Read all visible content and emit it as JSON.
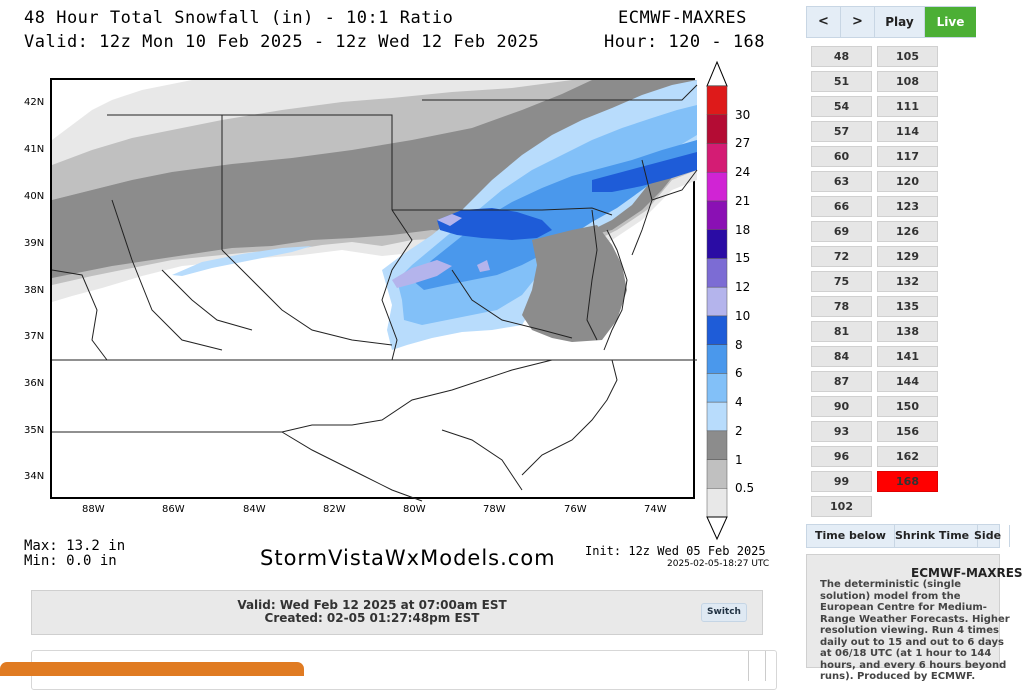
{
  "header": {
    "title_line1": "48 Hour Total Snowfall (in) - 10:1 Ratio",
    "title_line2": "Valid: 12z Mon 10 Feb 2025 - 12z Wed 12 Feb 2025",
    "model": "ECMWF-MAXRES",
    "hour_range": "Hour: 120 - 168"
  },
  "map": {
    "lat_labels": [
      "42N",
      "41N",
      "40N",
      "39N",
      "38N",
      "37N",
      "36N",
      "35N",
      "34N"
    ],
    "lon_labels": [
      "88W",
      "86W",
      "84W",
      "82W",
      "80W",
      "78W",
      "76W",
      "74W"
    ]
  },
  "colorbar": {
    "levels": [
      "0.5",
      "1",
      "2",
      "4",
      "6",
      "8",
      "10",
      "12",
      "15",
      "18",
      "21",
      "24",
      "27",
      "30"
    ],
    "colors": [
      "#e8e8e8",
      "#c0c0c0",
      "#8c8c8c",
      "#b8dcfc",
      "#82c0f8",
      "#4a98ec",
      "#1e5cd8",
      "#b4b4ec",
      "#7c6cd4",
      "#2a0ca4",
      "#8a10b4",
      "#d024d4",
      "#d41c74",
      "#b40c34",
      "#de1a1a"
    ]
  },
  "stats": {
    "max": "Max: 13.2 in",
    "min": "Min: 0.0 in"
  },
  "site_name": "StormVistaWxModels.com",
  "init_line": "Init: 12z Wed 05 Feb 2025",
  "created_utc": "2025-02-05-18:27 UTC",
  "info_box": {
    "valid": "Valid: Wed Feb 12 2025 at 07:00am EST",
    "created": "Created: 02-05 01:27:48pm EST",
    "switch_label": "Switch"
  },
  "controls": {
    "prev": "<",
    "next": ">",
    "play": "Play",
    "live": "Live"
  },
  "hours": {
    "col1": [
      "48",
      "51",
      "54",
      "57",
      "60",
      "63",
      "66",
      "69",
      "72",
      "75",
      "78",
      "81",
      "84",
      "87",
      "90",
      "93",
      "96",
      "99",
      "102"
    ],
    "col2": [
      "105",
      "108",
      "111",
      "114",
      "117",
      "120",
      "123",
      "126",
      "129",
      "132",
      "135",
      "138",
      "141",
      "144",
      "150",
      "156",
      "162",
      "168"
    ],
    "selected": "168",
    "selected_color": "#ff0000"
  },
  "tabs": {
    "time_below": "Time below",
    "shrink_time": "Shrink Time",
    "side": "Side"
  },
  "description": {
    "title": "ECMWF-MAXRES",
    "text": "The deterministic (single solution) model from the European Centre for Medium-Range Weather Forecasts. Higher resolution viewing. Run 4 times daily out to 15 and out to 6 days at 06/18 UTC (at 1 hour to 144 hours, and every 6 hours beyond runs). Produced by ECMWF."
  }
}
